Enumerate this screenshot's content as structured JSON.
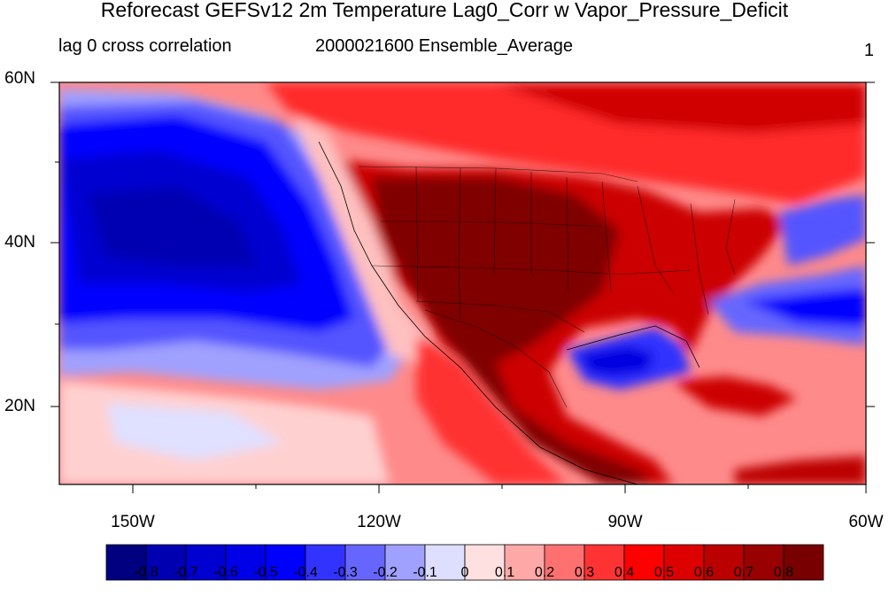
{
  "title": "Reforecast GEFSv12 2m Temperature Lag0_Corr w Vapor_Pressure_Deficit",
  "subtitle_left": "lag 0 cross correlation",
  "subtitle_center": "2000021600 Ensemble_Average",
  "subtitle_right": "1",
  "map": {
    "lat_labels": [
      "60N",
      "40N",
      "20N"
    ],
    "lon_labels": [
      "150W",
      "120W",
      "90W",
      "60W"
    ],
    "lat_range": [
      10,
      60
    ],
    "lon_range": [
      -160,
      -60
    ],
    "colorbar": {
      "labels": [
        "-0.8",
        "-0.7",
        "-0.6",
        "-0.5",
        "-0.4",
        "-0.3",
        "-0.2",
        "-0.1",
        "0",
        "0.1",
        "0.2",
        "0.3",
        "0.4",
        "0.5",
        "0.6",
        "0.7",
        "0.8"
      ],
      "colors": [
        "#000080",
        "#0000b2",
        "#0000d0",
        "#0000e8",
        "#0000ff",
        "#3333ff",
        "#6666ff",
        "#a0a0ff",
        "#dedeff",
        "#ffe0e0",
        "#ffa8a8",
        "#ff7070",
        "#ff3333",
        "#ff0000",
        "#dd0000",
        "#bb0000",
        "#990000",
        "#780000"
      ]
    }
  }
}
